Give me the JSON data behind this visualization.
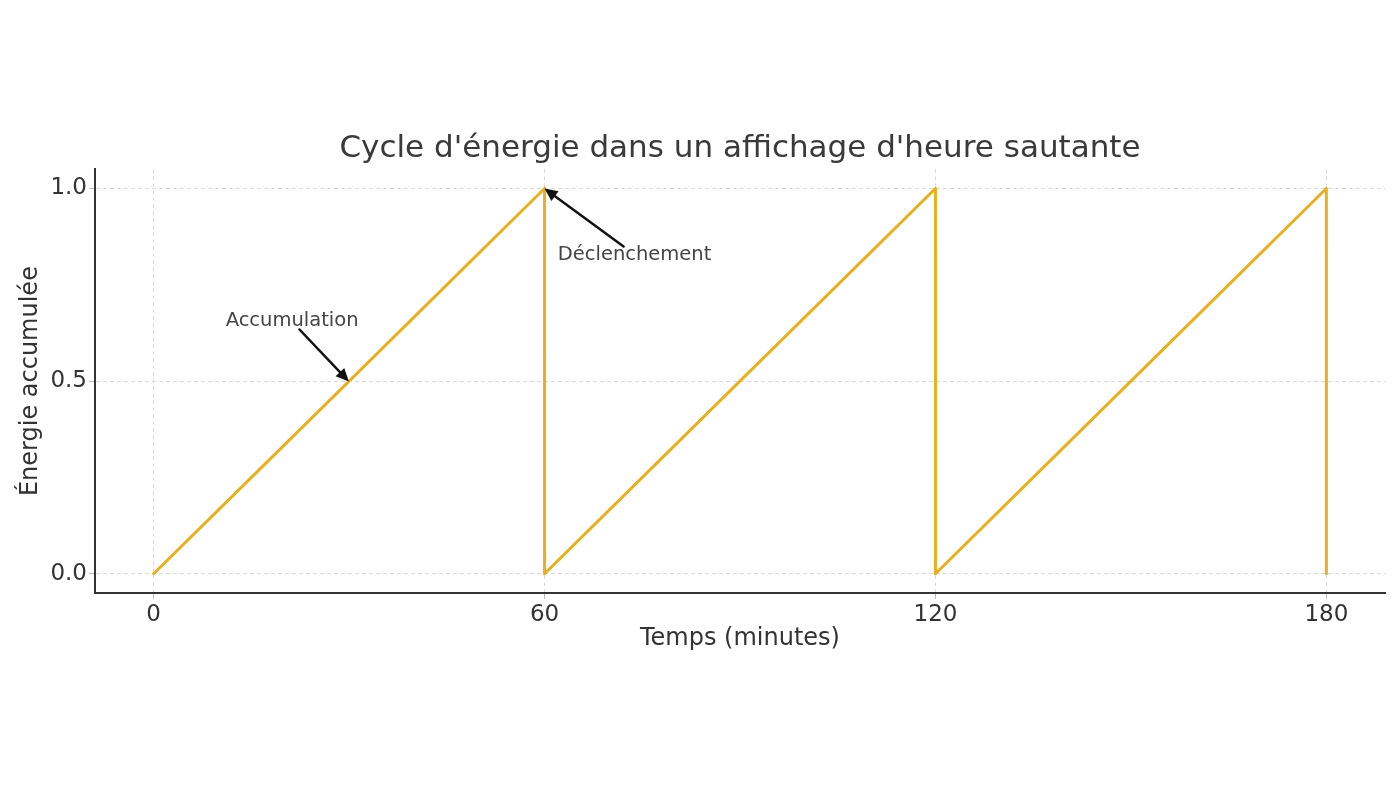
{
  "chart_data": {
    "type": "line",
    "title": "Cycle d'énergie dans un affichage d'heure sautante",
    "xlabel": "Temps (minutes)",
    "ylabel": "Énergie accumulée",
    "x": [
      0,
      60,
      60,
      120,
      120,
      180,
      180
    ],
    "series": [
      {
        "color": "#e8b020",
        "values": [
          0,
          1,
          0,
          1,
          0,
          1,
          0
        ]
      }
    ],
    "xlim": [
      -9,
      189
    ],
    "ylim": [
      -0.05,
      1.05
    ],
    "xticks": [
      0,
      60,
      120,
      180
    ],
    "yticks": [
      {
        "value": 0,
        "label": "0.0"
      },
      {
        "value": 0.5,
        "label": "0.5"
      },
      {
        "value": 1,
        "label": "1.0"
      }
    ],
    "grid": true,
    "marker": "none",
    "line_style": "solid",
    "annotations": [
      {
        "text": "Accumulation",
        "x": 30,
        "y": 0.5
      },
      {
        "text": "Déclenchement",
        "x": 60,
        "y": 1
      }
    ]
  }
}
